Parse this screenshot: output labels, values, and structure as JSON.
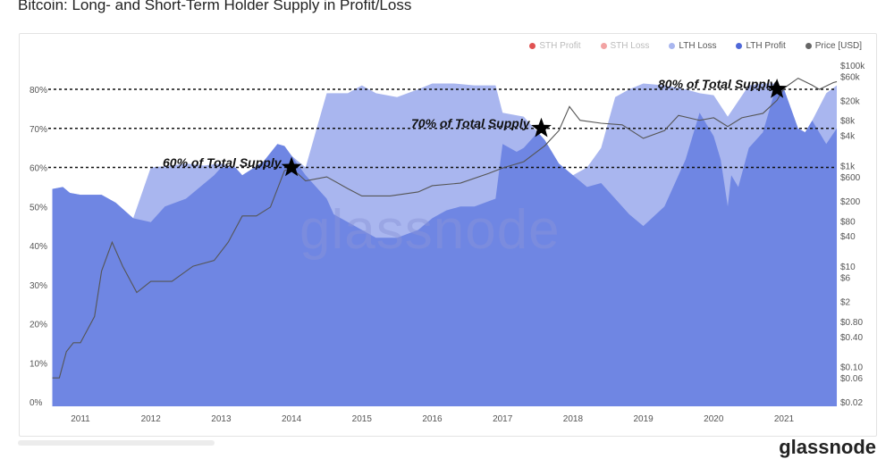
{
  "title": "Bitcoin: Long- and Short-Term Holder Supply in Profit/Loss",
  "watermark": "glassnode",
  "brand": "glassnode",
  "legend": [
    {
      "label": "STH Profit",
      "color": "#e05252",
      "muted": true
    },
    {
      "label": "STH Loss",
      "color": "#f2a3a3",
      "muted": true
    },
    {
      "label": "LTH Loss",
      "color": "#a9b6ef",
      "muted": false
    },
    {
      "label": "LTH Profit",
      "color": "#4f68d8",
      "muted": false
    },
    {
      "label": "Price [USD]",
      "color": "#666666",
      "muted": false
    }
  ],
  "chart_data": {
    "type": "area",
    "title": "Bitcoin: Long- and Short-Term Holder Supply in Profit/Loss",
    "x_ticks": [
      "2011",
      "2012",
      "2013",
      "2014",
      "2015",
      "2016",
      "2017",
      "2018",
      "2019",
      "2020",
      "2021"
    ],
    "y_left_ticks": [
      "0%",
      "10%",
      "20%",
      "30%",
      "40%",
      "50%",
      "60%",
      "70%",
      "80%"
    ],
    "y_right_ticks": [
      "$0.02",
      "$0.06",
      "$0.10",
      "$0.40",
      "$0.80",
      "$2",
      "$6",
      "$10",
      "$40",
      "$80",
      "$200",
      "$600",
      "$1k",
      "$4k",
      "$8k",
      "$20k",
      "$60k",
      "$100k"
    ],
    "y_left_range": [
      0,
      0.8
    ],
    "y_right_scale": "log",
    "series": [
      {
        "name": "LTH Total (Profit + Loss)",
        "x": [
          2010.6,
          2010.75,
          2010.85,
          2011.0,
          2011.3,
          2011.5,
          2011.75,
          2012.0,
          2012.3,
          2012.5,
          2012.75,
          2013.0,
          2013.2,
          2013.3,
          2013.6,
          2013.8,
          2013.9,
          2014.0,
          2014.2,
          2014.5,
          2014.8,
          2015.0,
          2015.2,
          2015.5,
          2015.8,
          2016.0,
          2016.3,
          2016.6,
          2016.9,
          2017.0,
          2017.3,
          2017.5,
          2017.6,
          2017.7,
          2017.8,
          2018.0,
          2018.2,
          2018.4,
          2018.6,
          2018.8,
          2019.0,
          2019.3,
          2019.6,
          2019.8,
          2020.0,
          2020.2,
          2020.5,
          2020.7,
          2020.9,
          2021.0,
          2021.1,
          2021.2,
          2021.3,
          2021.4,
          2021.6,
          2021.75
        ],
        "values": [
          0.545,
          0.55,
          0.535,
          0.53,
          0.53,
          0.51,
          0.47,
          0.6,
          0.605,
          0.61,
          0.605,
          0.61,
          0.6,
          0.58,
          0.615,
          0.66,
          0.655,
          0.63,
          0.6,
          0.79,
          0.79,
          0.81,
          0.79,
          0.78,
          0.8,
          0.815,
          0.815,
          0.81,
          0.81,
          0.74,
          0.73,
          0.69,
          0.67,
          0.64,
          0.61,
          0.58,
          0.6,
          0.65,
          0.78,
          0.8,
          0.815,
          0.81,
          0.8,
          0.79,
          0.785,
          0.73,
          0.81,
          0.815,
          0.815,
          0.8,
          0.75,
          0.7,
          0.69,
          0.72,
          0.79,
          0.81
        ]
      },
      {
        "name": "LTH Profit",
        "x": [
          2010.6,
          2010.75,
          2010.85,
          2011.0,
          2011.3,
          2011.5,
          2011.75,
          2012.0,
          2012.2,
          2012.5,
          2012.7,
          2012.9,
          2013.0,
          2013.2,
          2013.3,
          2013.6,
          2013.8,
          2013.9,
          2014.0,
          2014.2,
          2014.5,
          2014.6,
          2014.8,
          2015.0,
          2015.2,
          2015.5,
          2015.8,
          2016.0,
          2016.2,
          2016.4,
          2016.5,
          2016.6,
          2016.9,
          2017.0,
          2017.2,
          2017.3,
          2017.5,
          2017.6,
          2017.7,
          2017.8,
          2018.0,
          2018.2,
          2018.4,
          2018.6,
          2018.8,
          2019.0,
          2019.3,
          2019.6,
          2019.8,
          2020.0,
          2020.1,
          2020.2,
          2020.25,
          2020.35,
          2020.5,
          2020.7,
          2020.9,
          2021.0,
          2021.1,
          2021.2,
          2021.3,
          2021.4,
          2021.6,
          2021.75
        ],
        "values": [
          0.545,
          0.55,
          0.535,
          0.53,
          0.53,
          0.51,
          0.47,
          0.46,
          0.5,
          0.52,
          0.55,
          0.58,
          0.6,
          0.6,
          0.58,
          0.615,
          0.66,
          0.655,
          0.63,
          0.58,
          0.52,
          0.48,
          0.46,
          0.44,
          0.42,
          0.42,
          0.44,
          0.47,
          0.49,
          0.5,
          0.5,
          0.5,
          0.52,
          0.66,
          0.64,
          0.65,
          0.69,
          0.67,
          0.64,
          0.61,
          0.58,
          0.55,
          0.56,
          0.52,
          0.48,
          0.45,
          0.5,
          0.62,
          0.74,
          0.68,
          0.62,
          0.5,
          0.58,
          0.55,
          0.65,
          0.69,
          0.815,
          0.8,
          0.75,
          0.7,
          0.69,
          0.72,
          0.66,
          0.7
        ]
      },
      {
        "name": "Price [USD]",
        "x": [
          2010.6,
          2010.7,
          2010.8,
          2010.9,
          2011.0,
          2011.2,
          2011.3,
          2011.45,
          2011.6,
          2011.8,
          2012.0,
          2012.3,
          2012.6,
          2012.9,
          2013.1,
          2013.3,
          2013.5,
          2013.7,
          2013.9,
          2014.0,
          2014.2,
          2014.5,
          2014.8,
          2015.0,
          2015.4,
          2015.8,
          2016.0,
          2016.4,
          2016.8,
          2017.0,
          2017.3,
          2017.6,
          2017.8,
          2017.95,
          2018.1,
          2018.4,
          2018.7,
          2019.0,
          2019.3,
          2019.5,
          2019.8,
          2020.0,
          2020.2,
          2020.4,
          2020.7,
          2020.9,
          2021.0,
          2021.2,
          2021.4,
          2021.5,
          2021.7,
          2021.75
        ],
        "values": [
          0.06,
          0.06,
          0.2,
          0.3,
          0.3,
          1,
          8,
          30,
          10,
          3,
          5,
          5,
          10,
          13,
          30,
          100,
          100,
          150,
          800,
          900,
          500,
          600,
          350,
          250,
          250,
          300,
          400,
          450,
          700,
          900,
          1200,
          2500,
          5000,
          15000,
          8000,
          7000,
          6500,
          3500,
          5000,
          10000,
          8000,
          9000,
          6000,
          9000,
          11000,
          20000,
          35000,
          55000,
          40000,
          33000,
          45000,
          47000
        ]
      }
    ],
    "reference_lines": [
      {
        "label": "60% of Total Supply",
        "y": 0.6
      },
      {
        "label": "70% of Total Supply",
        "y": 0.7
      },
      {
        "label": "80% of Total Supply",
        "y": 0.8
      }
    ],
    "markers": [
      {
        "x": 2014.0,
        "y": 0.6
      },
      {
        "x": 2017.55,
        "y": 0.7
      },
      {
        "x": 2020.9,
        "y": 0.8
      }
    ]
  }
}
